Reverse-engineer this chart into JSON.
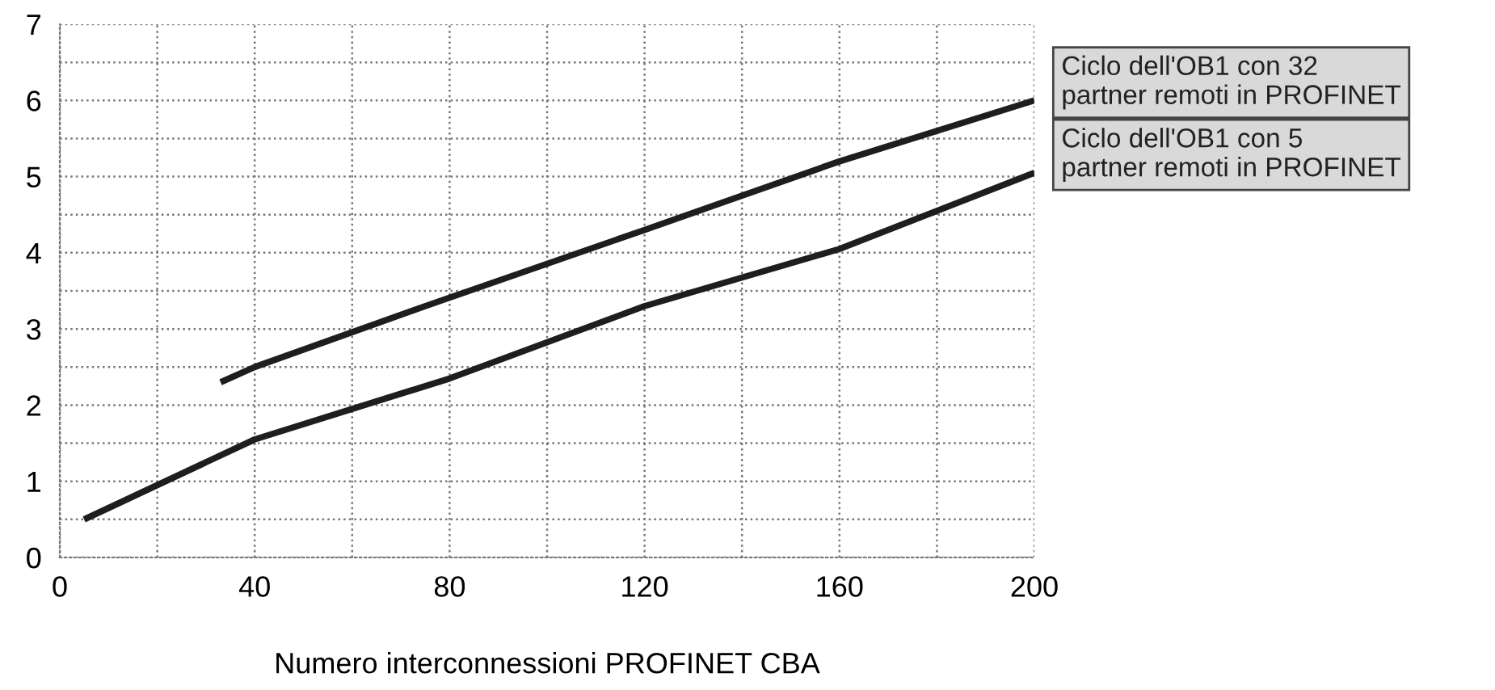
{
  "chart_data": {
    "type": "line",
    "xlabel": "Numero interconnessioni PROFINET CBA",
    "xlim": [
      0,
      200
    ],
    "ylim": [
      0,
      7
    ],
    "xticks": [
      0,
      {
        "value": 20,
        "label": null
      },
      40,
      {
        "value": 60,
        "label": null
      },
      80,
      {
        "value": 100,
        "label": null
      },
      120,
      {
        "value": 140,
        "label": null
      },
      160,
      {
        "value": 180,
        "label": null
      },
      200
    ],
    "yticks": [
      0,
      {
        "value": 0.5,
        "label": null
      },
      1,
      {
        "value": 1.5,
        "label": null
      },
      2,
      {
        "value": 2.5,
        "label": null
      },
      3,
      {
        "value": 3.5,
        "label": null
      },
      4,
      {
        "value": 4.5,
        "label": null
      },
      5,
      {
        "value": 5.5,
        "label": null
      },
      6,
      {
        "value": 6.5,
        "label": null
      },
      7
    ],
    "grid": true,
    "line_style": "solid",
    "marker": "none",
    "series": [
      {
        "name": "Ciclo dell'OB1 con 32\npartner remoti in PROFINET",
        "color": "#1e1e1e",
        "x": [
          33,
          40,
          75,
          120,
          160,
          200
        ],
        "values": [
          2.3,
          2.5,
          3.3,
          4.3,
          5.2,
          6.0
        ]
      },
      {
        "name": "Ciclo dell'OB1 con 5\npartner remoti in PROFINET",
        "color": "#1e1e1e",
        "x": [
          5,
          40,
          80,
          120,
          160,
          200
        ],
        "values": [
          0.5,
          1.55,
          2.35,
          3.3,
          4.05,
          5.05
        ]
      }
    ]
  }
}
